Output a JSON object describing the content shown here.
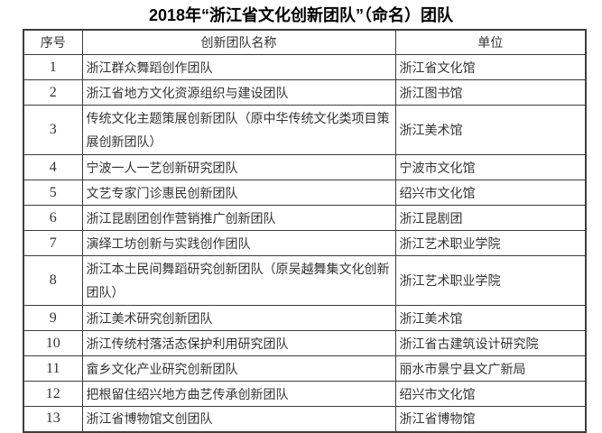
{
  "title": "2018年“浙江省文化创新团队”（命名）团队",
  "colors": {
    "background": "#ffffff",
    "border": "#3d3d3d",
    "text": "#333333",
    "title_text": "#000000"
  },
  "table": {
    "headers": [
      "序号",
      "创新团队名称",
      "单位"
    ],
    "rows": [
      {
        "no": "1",
        "team": "浙江群众舞蹈创作团队",
        "unit": "浙江省文化馆",
        "tall": false
      },
      {
        "no": "2",
        "team": "浙江省地方文化资源组织与建设团队",
        "unit": "浙江图书馆",
        "tall": false
      },
      {
        "no": "3",
        "team": "传统文化主题策展创新团队（原中华传统文化类项目策展创新团队）",
        "unit": "浙江美术馆",
        "tall": true
      },
      {
        "no": "4",
        "team": "宁波一人一艺创新研究团队",
        "unit": "宁波市文化馆",
        "tall": false
      },
      {
        "no": "5",
        "team": "文艺专家门诊惠民创新团队",
        "unit": "绍兴市文化馆",
        "tall": false
      },
      {
        "no": "6",
        "team": "浙江昆剧团创作营销推广创新团队",
        "unit": "浙江昆剧团",
        "tall": false
      },
      {
        "no": "7",
        "team": "演绎工坊创新与实践创作团队",
        "unit": "浙江艺术职业学院",
        "tall": false
      },
      {
        "no": "8",
        "team": "浙江本土民间舞蹈研究创新团队（原吴越舞集文化创新团队）",
        "unit": "浙江艺术职业学院",
        "tall": true
      },
      {
        "no": "9",
        "team": "浙江美术研究创新团队",
        "unit": "浙江美术馆",
        "tall": false
      },
      {
        "no": "10",
        "team": "浙江传统村落活态保护利用研究团队",
        "unit": "浙江省古建筑设计研究院",
        "tall": false
      },
      {
        "no": "11",
        "team": "畲乡文化产业研究创新团队",
        "unit": "丽水市景宁县文广新局",
        "tall": false
      },
      {
        "no": "12",
        "team": "把根留住绍兴地方曲艺传承创新团队",
        "unit": "绍兴市文化馆",
        "tall": false
      },
      {
        "no": "13",
        "team": "浙江省博物馆文创团队",
        "unit": "浙江省博物馆",
        "tall": false
      }
    ]
  }
}
